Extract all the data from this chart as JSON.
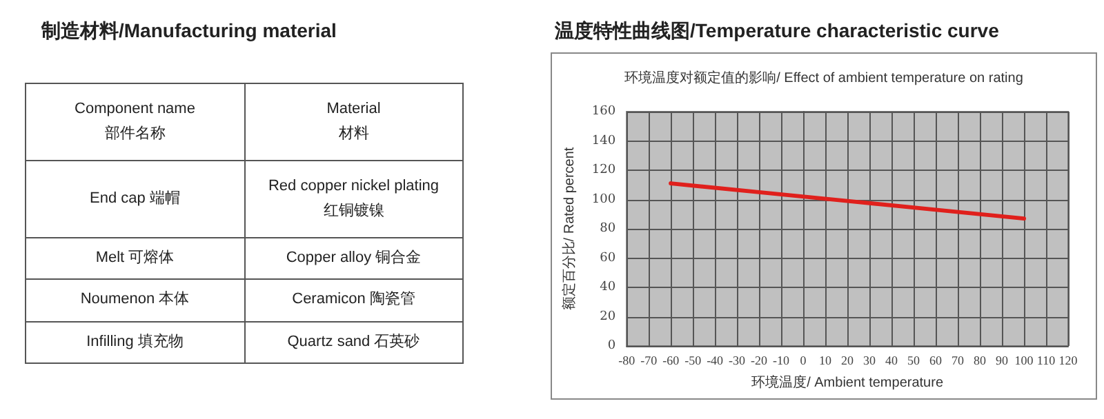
{
  "chart_data": [
    {
      "type": "other",
      "title": "制造材料/Manufacturing material",
      "annotations": [
        "Component name\n部件名称",
        "Material\n材料",
        "End cap 端帽",
        "Red copper nickel plating\n红铜镀镍",
        "Melt  可熔体",
        "Copper alloy  铜合金",
        "Noumenon  本体",
        "Ceramicon  陶瓷管",
        "Infilling 填充物",
        "Quartz sand  石英砂"
      ]
    },
    {
      "type": "line",
      "title": "温度特性曲线图/Temperature characteristic curve",
      "subtitle": "环境温度对额定值的影响/ Effect of ambient temperature on rating",
      "xlabel": "环境温度/ Ambient temperature",
      "ylabel": "额定百分比/ Rated percent",
      "x": [
        -60,
        -20,
        20,
        60,
        100
      ],
      "series": [
        {
          "color": "#e0201c",
          "values": [
            111,
            105,
            99,
            93,
            87
          ]
        }
      ],
      "xlim": [
        -80,
        120
      ],
      "xticks": [
        -80,
        -70,
        -60,
        -50,
        -40,
        -30,
        -20,
        -10,
        0,
        10,
        20,
        30,
        40,
        50,
        60,
        70,
        80,
        90,
        100,
        110,
        120
      ],
      "ylim": [
        0,
        160
      ],
      "yticks": [
        0,
        20,
        40,
        60,
        80,
        100,
        120,
        140,
        160
      ],
      "grid": true,
      "marker": "none",
      "line_style": "solid"
    }
  ]
}
